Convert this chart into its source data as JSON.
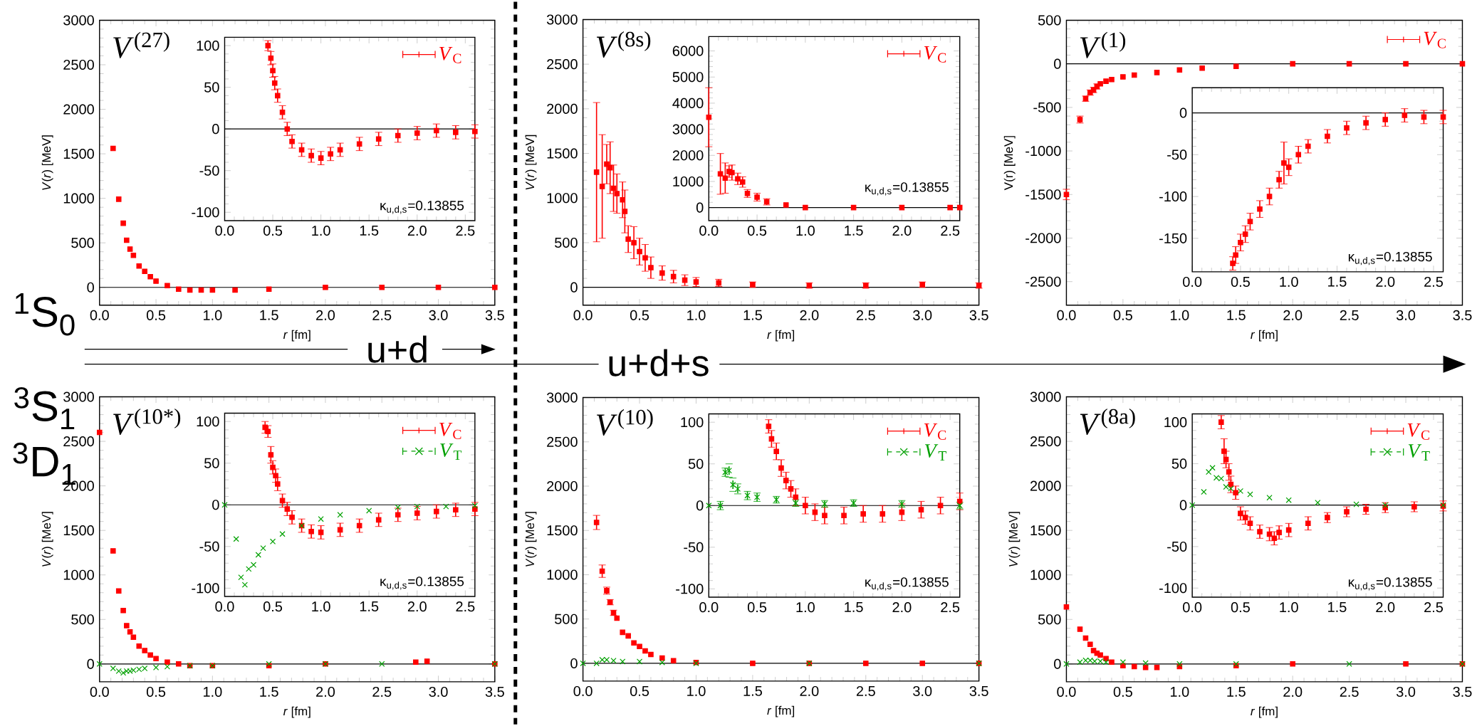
{
  "chart_data": [
    {
      "type": "scatter",
      "title": "*V*$^{(27)}$",
      "xlabel": "*r* [fm]",
      "ylabel": "*V*(*r*) [MeV]",
      "xlim": [
        0,
        3.5
      ],
      "ylim": [
        -200,
        3000
      ],
      "xticks": [
        {
          "value": 0,
          "label": "0.0"
        },
        {
          "value": 0.5,
          "label": "0.5"
        },
        {
          "value": 1,
          "label": "1.0"
        },
        {
          "value": 1.5,
          "label": "1.5"
        },
        {
          "value": 2,
          "label": "2.0"
        },
        {
          "value": 2.5,
          "label": "2.5"
        },
        {
          "value": 3,
          "label": "3.0"
        },
        {
          "value": 3.5,
          "label": "3.5"
        }
      ],
      "yticks": [
        0,
        500,
        1000,
        1500,
        2000,
        2500,
        3000
      ],
      "ref_lines": [
        {
          "axis": "y",
          "value": 0,
          "color": "#000000"
        }
      ],
      "annotations": [
        "$^{1}$S$_{0}$",
        "u+d"
      ],
      "series": [
        {
          "color": "#ff0000",
          "marker": "square",
          "x": [
            0.12,
            0.17,
            0.21,
            0.24,
            0.27,
            0.3,
            0.35,
            0.4,
            0.45,
            0.5,
            0.6,
            0.7,
            0.8,
            0.9,
            1.0,
            1.2,
            1.5,
            2.0,
            2.5,
            3.0,
            3.5
          ],
          "values": [
            1560,
            990,
            720,
            530,
            430,
            360,
            240,
            180,
            120,
            70,
            20,
            -20,
            -30,
            -30,
            -30,
            -30,
            -20,
            0,
            0,
            0,
            0
          ]
        }
      ]
    },
    {
      "type": "scatter",
      "xlim": [
        0,
        2.6
      ],
      "ylim": [
        -110,
        110
      ],
      "legend": "top right",
      "xticks": [
        {
          "value": 0,
          "label": "0.0"
        },
        {
          "value": 0.5,
          "label": "0.5"
        },
        {
          "value": 1,
          "label": "1.0"
        },
        {
          "value": 1.5,
          "label": "1.5"
        },
        {
          "value": 2,
          "label": "2.0"
        },
        {
          "value": 2.5,
          "label": "2.5"
        }
      ],
      "yticks": [
        -100,
        -50,
        0,
        50,
        100
      ],
      "ref_lines": [
        {
          "axis": "y",
          "value": 0,
          "color": "#000000"
        }
      ],
      "annotations": [
        "κ$_{u,d,s}$=0.13855"
      ],
      "series": [
        {
          "name": "*V*$_{C}$",
          "color": "#ff0000",
          "marker": "square",
          "x": [
            0.45,
            0.48,
            0.5,
            0.52,
            0.55,
            0.6,
            0.65,
            0.7,
            0.8,
            0.9,
            1.0,
            1.1,
            1.2,
            1.4,
            1.6,
            1.8,
            2.0,
            2.2,
            2.4,
            2.6
          ],
          "values": [
            100,
            85,
            70,
            55,
            40,
            20,
            0,
            -15,
            -25,
            -32,
            -35,
            -30,
            -25,
            -18,
            -12,
            -8,
            -5,
            -2,
            -4,
            -3
          ],
          "errors": [
            6,
            8,
            8,
            8,
            8,
            8,
            8,
            8,
            8,
            8,
            8,
            8,
            8,
            8,
            8,
            8,
            8,
            8,
            8,
            8
          ]
        }
      ]
    },
    {
      "type": "scatter",
      "title": "*V*$^{(8s)}$",
      "xlabel": "*r* [fm]",
      "ylabel": "*V*(*r*) [MeV]",
      "xlim": [
        0,
        3.5
      ],
      "ylim": [
        -200,
        3000
      ],
      "xticks": [
        {
          "value": 0,
          "label": "0.0"
        },
        {
          "value": 0.5,
          "label": "0.5"
        },
        {
          "value": 1,
          "label": "1.0"
        },
        {
          "value": 1.5,
          "label": "1.5"
        },
        {
          "value": 2,
          "label": "2.0"
        },
        {
          "value": 2.5,
          "label": "2.5"
        },
        {
          "value": 3,
          "label": "3.0"
        },
        {
          "value": 3.5,
          "label": "3.5"
        }
      ],
      "yticks": [
        0,
        500,
        1000,
        1500,
        2000,
        2500,
        3000
      ],
      "ref_lines": [
        {
          "axis": "y",
          "value": 0,
          "color": "#000000"
        }
      ],
      "annotations": [
        "u+d+s"
      ],
      "series": [
        {
          "color": "#ff0000",
          "marker": "square",
          "x": [
            0.12,
            0.17,
            0.21,
            0.24,
            0.27,
            0.3,
            0.35,
            0.37,
            0.4,
            0.45,
            0.5,
            0.55,
            0.6,
            0.7,
            0.8,
            0.9,
            1.0,
            1.2,
            1.5,
            2.0,
            2.5,
            3.0,
            3.5
          ],
          "values": [
            1290,
            1130,
            1380,
            1340,
            1110,
            1050,
            980,
            850,
            540,
            500,
            400,
            330,
            220,
            160,
            120,
            80,
            60,
            50,
            30,
            20,
            20,
            30,
            20
          ],
          "errors": [
            780,
            580,
            220,
            290,
            260,
            220,
            200,
            240,
            150,
            180,
            150,
            150,
            120,
            80,
            70,
            60,
            50,
            40,
            30,
            30,
            30,
            30,
            30
          ]
        }
      ]
    },
    {
      "type": "scatter",
      "xlim": [
        0,
        2.6
      ],
      "ylim": [
        -500,
        6550
      ],
      "legend": "top right",
      "xticks": [
        {
          "value": 0,
          "label": "0.0"
        },
        {
          "value": 0.5,
          "label": "0.5"
        },
        {
          "value": 1,
          "label": "1.0"
        },
        {
          "value": 1.5,
          "label": "1.5"
        },
        {
          "value": 2,
          "label": "2.0"
        },
        {
          "value": 2.5,
          "label": "2.5"
        }
      ],
      "yticks": [
        0,
        1000,
        2000,
        3000,
        4000,
        5000,
        6000
      ],
      "ref_lines": [
        {
          "axis": "y",
          "value": 0,
          "color": "#000000"
        }
      ],
      "annotations": [
        "κ$_{u,d,s}$=0.13855"
      ],
      "series": [
        {
          "name": "*V*$_{C}$",
          "color": "#ff0000",
          "marker": "square",
          "x": [
            0,
            0.12,
            0.17,
            0.21,
            0.24,
            0.3,
            0.35,
            0.4,
            0.5,
            0.6,
            0.8,
            1.0,
            1.5,
            2.0,
            2.5,
            2.6
          ],
          "values": [
            3460,
            1290,
            1130,
            1380,
            1340,
            1100,
            980,
            540,
            400,
            220,
            100,
            0,
            0,
            0,
            0,
            0
          ],
          "errors": [
            1130,
            780,
            580,
            220,
            290,
            220,
            200,
            150,
            150,
            120,
            null,
            null,
            null,
            null,
            null,
            null
          ]
        }
      ]
    },
    {
      "type": "scatter",
      "title": "*V*$^{(1)}$",
      "xlabel": "*r* [fm]",
      "ylabel": "V(r) [MeV]",
      "xlim": [
        0,
        3.5
      ],
      "ylim": [
        -2770,
        500
      ],
      "legend": "top right",
      "xticks": [
        {
          "value": 0,
          "label": "0.0"
        },
        {
          "value": 0.5,
          "label": "0.5"
        },
        {
          "value": 1,
          "label": "1.0"
        },
        {
          "value": 1.5,
          "label": "1.5"
        },
        {
          "value": 2,
          "label": "2.0"
        },
        {
          "value": 2.5,
          "label": "2.5"
        },
        {
          "value": 3,
          "label": "3.0"
        },
        {
          "value": 3.5,
          "label": "3.5"
        }
      ],
      "yticks": [
        -2500,
        -2000,
        -1500,
        -1000,
        -500,
        0,
        500
      ],
      "ref_lines": [
        {
          "axis": "y",
          "value": 0,
          "color": "#000000"
        }
      ],
      "series": [
        {
          "name": "*V*$_{C}$",
          "color": "#ff0000",
          "marker": "square",
          "x": [
            0,
            0.12,
            0.17,
            0.21,
            0.24,
            0.27,
            0.3,
            0.35,
            0.4,
            0.5,
            0.6,
            0.8,
            1.0,
            1.2,
            1.5,
            2.0,
            2.5,
            3.0,
            3.5
          ],
          "values": [
            -1500,
            -640,
            -400,
            -330,
            -300,
            -260,
            -230,
            -200,
            -180,
            -150,
            -130,
            -100,
            -70,
            -50,
            -30,
            0,
            0,
            0,
            0
          ],
          "errors": [
            60,
            40,
            30,
            30,
            30,
            30,
            null,
            null,
            null,
            null,
            null,
            null,
            null,
            null,
            null,
            null,
            null,
            null,
            null
          ]
        }
      ]
    },
    {
      "type": "scatter",
      "xlim": [
        0,
        2.6
      ],
      "ylim": [
        -190,
        30
      ],
      "xticks": [
        {
          "value": 0,
          "label": "0.0"
        },
        {
          "value": 0.5,
          "label": "0.5"
        },
        {
          "value": 1,
          "label": "1.0"
        },
        {
          "value": 1.5,
          "label": "1.5"
        },
        {
          "value": 2,
          "label": "2.0"
        },
        {
          "value": 2.5,
          "label": "2.5"
        }
      ],
      "yticks": [
        -150,
        -100,
        -50,
        0
      ],
      "ref_lines": [
        {
          "axis": "y",
          "value": 0,
          "color": "#000000"
        }
      ],
      "annotations": [
        "κ$_{u,d,s}$=0.13855"
      ],
      "series": [
        {
          "color": "#ff0000",
          "marker": "square",
          "x": [
            0.42,
            0.45,
            0.5,
            0.55,
            0.6,
            0.7,
            0.8,
            0.9,
            0.95,
            1.0,
            1.1,
            1.2,
            1.4,
            1.6,
            1.8,
            2.0,
            2.2,
            2.4,
            2.6
          ],
          "values": [
            -180,
            -170,
            -155,
            -145,
            -130,
            -115,
            -100,
            -80,
            -60,
            -65,
            -50,
            -40,
            -28,
            -18,
            -12,
            -8,
            -3,
            -5,
            -5
          ],
          "errors": [
            8,
            10,
            10,
            10,
            10,
            10,
            10,
            10,
            25,
            10,
            10,
            8,
            8,
            8,
            8,
            8,
            8,
            8,
            8
          ]
        }
      ]
    },
    {
      "type": "scatter",
      "title": "*V*$^{(10*)}$",
      "xlabel": "*r* [fm]",
      "ylabel": "*V*(*r*) [MeV]",
      "xlim": [
        0,
        3.5
      ],
      "ylim": [
        -200,
        3000
      ],
      "xticks": [
        {
          "value": 0,
          "label": "0.0"
        },
        {
          "value": 0.5,
          "label": "0.5"
        },
        {
          "value": 1,
          "label": "1.0"
        },
        {
          "value": 1.5,
          "label": "1.5"
        },
        {
          "value": 2,
          "label": "2.0"
        },
        {
          "value": 2.5,
          "label": "2.5"
        },
        {
          "value": 3,
          "label": "3.0"
        },
        {
          "value": 3.5,
          "label": "3.5"
        }
      ],
      "yticks": [
        0,
        500,
        1000,
        1500,
        2000,
        2500,
        3000
      ],
      "ref_lines": [
        {
          "axis": "y",
          "value": 0,
          "color": "#000000"
        }
      ],
      "annotations": [
        "$^{3}$S$_{1}$",
        "$^{3}$D$_{1}$"
      ],
      "series": [
        {
          "color": "#ff0000",
          "marker": "square",
          "x": [
            0,
            0.12,
            0.17,
            0.21,
            0.24,
            0.27,
            0.3,
            0.35,
            0.4,
            0.45,
            0.5,
            0.6,
            0.7,
            0.8,
            1.0,
            1.5,
            2.0,
            2.8,
            2.9,
            3.5
          ],
          "values": [
            2600,
            1270,
            820,
            600,
            430,
            360,
            300,
            200,
            150,
            100,
            60,
            20,
            0,
            -20,
            -20,
            -20,
            0,
            20,
            30,
            0
          ]
        },
        {
          "color": "#00a000",
          "marker": "cross",
          "x": [
            0,
            0.12,
            0.17,
            0.21,
            0.24,
            0.27,
            0.3,
            0.35,
            0.4,
            0.5,
            0.6,
            0.8,
            1.0,
            1.5,
            2.0,
            2.5,
            3.5
          ],
          "values": [
            0,
            -50,
            -80,
            -100,
            -80,
            -80,
            -70,
            -60,
            -50,
            -40,
            -30,
            -20,
            -20,
            0,
            0,
            0,
            0
          ]
        }
      ]
    },
    {
      "type": "scatter",
      "xlim": [
        0,
        2.6
      ],
      "ylim": [
        -110,
        110
      ],
      "legend": "top right",
      "xticks": [
        {
          "value": 0,
          "label": "0.0"
        },
        {
          "value": 0.5,
          "label": "0.5"
        },
        {
          "value": 1,
          "label": "1.0"
        },
        {
          "value": 1.5,
          "label": "1.5"
        },
        {
          "value": 2,
          "label": "2.0"
        },
        {
          "value": 2.5,
          "label": "2.5"
        }
      ],
      "yticks": [
        -100,
        -50,
        0,
        50,
        100
      ],
      "ref_lines": [
        {
          "axis": "y",
          "value": 0,
          "color": "#000000"
        }
      ],
      "annotations": [
        "κ$_{u,d,s}$=0.13855"
      ],
      "series": [
        {
          "name": "*V*$_{C}$",
          "color": "#ff0000",
          "marker": "square",
          "x": [
            0.42,
            0.45,
            0.48,
            0.5,
            0.53,
            0.55,
            0.6,
            0.65,
            0.7,
            0.8,
            0.9,
            1.0,
            1.2,
            1.4,
            1.6,
            1.8,
            2.0,
            2.2,
            2.4,
            2.6
          ],
          "values": [
            93,
            88,
            60,
            45,
            35,
            25,
            5,
            -5,
            -15,
            -25,
            -32,
            -33,
            -30,
            -25,
            -18,
            -12,
            -10,
            -8,
            -6,
            -5
          ],
          "errors": [
            7,
            7,
            10,
            8,
            8,
            8,
            8,
            8,
            8,
            8,
            8,
            8,
            8,
            8,
            8,
            8,
            8,
            8,
            8,
            8
          ]
        },
        {
          "name": "*V*$_{T}$",
          "color": "#00a000",
          "marker": "cross",
          "line_style": "dashed",
          "x": [
            0,
            0.12,
            0.17,
            0.21,
            0.25,
            0.3,
            0.35,
            0.4,
            0.5,
            0.6,
            0.8,
            1.0,
            1.2,
            1.5,
            1.8,
            2.0,
            2.3,
            2.6
          ],
          "values": [
            0,
            -41,
            -87,
            -96,
            -77,
            -72,
            -60,
            -52,
            -44,
            -35,
            -25,
            -17,
            -12,
            -7,
            -3,
            -2,
            -2,
            -1
          ]
        }
      ]
    },
    {
      "type": "scatter",
      "title": "*V*$^{(10)}$",
      "xlabel": "*r* [fm]",
      "ylabel": "*V*(*r*) [MeV]",
      "xlim": [
        0,
        3.5
      ],
      "ylim": [
        -200,
        3000
      ],
      "xticks": [
        {
          "value": 0,
          "label": "0.0"
        },
        {
          "value": 0.5,
          "label": "0.5"
        },
        {
          "value": 1,
          "label": "1.0"
        },
        {
          "value": 1.5,
          "label": "1.5"
        },
        {
          "value": 2,
          "label": "2.0"
        },
        {
          "value": 2.5,
          "label": "2.5"
        },
        {
          "value": 3,
          "label": "3.0"
        },
        {
          "value": 3.5,
          "label": "3.5"
        }
      ],
      "yticks": [
        0,
        500,
        1000,
        1500,
        2000,
        2500,
        3000
      ],
      "ref_lines": [
        {
          "axis": "y",
          "value": 0,
          "color": "#000000"
        }
      ],
      "series": [
        {
          "color": "#ff0000",
          "marker": "square",
          "x": [
            0.12,
            0.17,
            0.21,
            0.24,
            0.27,
            0.3,
            0.35,
            0.4,
            0.45,
            0.5,
            0.55,
            0.6,
            0.7,
            0.8,
            1.0,
            1.5,
            2.0,
            2.5,
            3.0,
            3.5
          ],
          "values": [
            1590,
            1040,
            820,
            690,
            570,
            510,
            350,
            310,
            230,
            190,
            140,
            100,
            60,
            30,
            10,
            0,
            0,
            0,
            0,
            0
          ],
          "errors": [
            80,
            70,
            40,
            30,
            30,
            null,
            null,
            null,
            null,
            null,
            null,
            null,
            null,
            null,
            null,
            null,
            null,
            null,
            null,
            null
          ]
        },
        {
          "color": "#00a000",
          "marker": "cross",
          "x": [
            0,
            0.12,
            0.17,
            0.21,
            0.27,
            0.35,
            0.5,
            0.7,
            1.0,
            2.0,
            3.5
          ],
          "values": [
            0,
            0,
            40,
            40,
            30,
            20,
            20,
            10,
            0,
            0,
            0
          ]
        }
      ]
    },
    {
      "type": "scatter",
      "xlim": [
        0,
        2.6
      ],
      "ylim": [
        -110,
        110
      ],
      "legend": "top right",
      "xticks": [
        {
          "value": 0,
          "label": "0.0"
        },
        {
          "value": 0.5,
          "label": "0.5"
        },
        {
          "value": 1,
          "label": "1.0"
        },
        {
          "value": 1.5,
          "label": "1.5"
        },
        {
          "value": 2,
          "label": "2.0"
        },
        {
          "value": 2.5,
          "label": "2.5"
        }
      ],
      "yticks": [
        -100,
        -50,
        0,
        50,
        100
      ],
      "ref_lines": [
        {
          "axis": "y",
          "value": 0,
          "color": "#000000"
        }
      ],
      "annotations": [
        "κ$_{u,d,s}$=0.13855"
      ],
      "series": [
        {
          "name": "*V*$_{C}$",
          "color": "#ff0000",
          "marker": "square",
          "x": [
            0.62,
            0.65,
            0.7,
            0.75,
            0.8,
            0.85,
            0.9,
            1.0,
            1.1,
            1.2,
            1.4,
            1.6,
            1.8,
            2.0,
            2.2,
            2.4,
            2.6
          ],
          "values": [
            95,
            80,
            65,
            45,
            30,
            20,
            10,
            0,
            -8,
            -12,
            -12,
            -10,
            -10,
            -8,
            -5,
            0,
            5
          ],
          "errors": [
            8,
            10,
            10,
            10,
            10,
            10,
            10,
            10,
            10,
            10,
            10,
            10,
            10,
            10,
            10,
            10,
            10
          ]
        },
        {
          "name": "*V*$_{T}$",
          "color": "#00a000",
          "marker": "cross",
          "line_style": "dashed",
          "x": [
            0,
            0.12,
            0.17,
            0.21,
            0.25,
            0.3,
            0.4,
            0.5,
            0.7,
            0.9,
            1.2,
            1.5,
            2.0,
            2.6
          ],
          "values": [
            0,
            0,
            40,
            42,
            25,
            20,
            12,
            10,
            7,
            3,
            2,
            3,
            2,
            0
          ],
          "errors": [
            null,
            5,
            5,
            8,
            8,
            6,
            5,
            5,
            4,
            4,
            4,
            4,
            4,
            4
          ]
        }
      ]
    },
    {
      "type": "scatter",
      "title": "*V*$^{(8a)}$",
      "xlabel": "*r* [fm]",
      "ylabel": "*V*(*r*) [MeV]",
      "xlim": [
        0,
        3.5
      ],
      "ylim": [
        -200,
        3000
      ],
      "xticks": [
        {
          "value": 0,
          "label": "0.0"
        },
        {
          "value": 0.5,
          "label": "0.5"
        },
        {
          "value": 1,
          "label": "1.0"
        },
        {
          "value": 1.5,
          "label": "1.5"
        },
        {
          "value": 2,
          "label": "2.0"
        },
        {
          "value": 2.5,
          "label": "2.5"
        },
        {
          "value": 3,
          "label": "3.0"
        },
        {
          "value": 3.5,
          "label": "3.5"
        }
      ],
      "yticks": [
        0,
        500,
        1000,
        1500,
        2000,
        2500,
        3000
      ],
      "ref_lines": [
        {
          "axis": "y",
          "value": 0,
          "color": "#000000"
        }
      ],
      "series": [
        {
          "color": "#ff0000",
          "marker": "square",
          "x": [
            0,
            0.12,
            0.17,
            0.21,
            0.24,
            0.27,
            0.3,
            0.35,
            0.4,
            0.5,
            0.6,
            0.7,
            0.8,
            1.0,
            1.5,
            2.0,
            3.0,
            3.5
          ],
          "values": [
            640,
            390,
            290,
            220,
            150,
            120,
            100,
            60,
            20,
            -20,
            -30,
            -40,
            -40,
            -30,
            -20,
            0,
            0,
            0
          ]
        },
        {
          "color": "#00a000",
          "marker": "cross",
          "x": [
            0,
            0.12,
            0.17,
            0.21,
            0.25,
            0.3,
            0.35,
            0.5,
            0.7,
            1.0,
            1.5,
            2.5,
            3.5
          ],
          "values": [
            0,
            20,
            40,
            40,
            30,
            30,
            20,
            20,
            10,
            0,
            0,
            0,
            0
          ]
        }
      ]
    },
    {
      "type": "scatter",
      "xlim": [
        0,
        2.6
      ],
      "ylim": [
        -111,
        110
      ],
      "legend": "top right",
      "xticks": [
        {
          "value": 0,
          "label": "0.0"
        },
        {
          "value": 0.5,
          "label": "0.5"
        },
        {
          "value": 1,
          "label": "1.0"
        },
        {
          "value": 1.5,
          "label": "1.5"
        },
        {
          "value": 2,
          "label": "2.0"
        },
        {
          "value": 2.5,
          "label": "2.5"
        }
      ],
      "yticks": [
        -100,
        -50,
        0,
        50,
        100
      ],
      "ref_lines": [
        {
          "axis": "y",
          "value": 0,
          "color": "#000000"
        }
      ],
      "annotations": [
        "κ$_{u,d,s}$=0.13855"
      ],
      "series": [
        {
          "name": "*V*$_{C}$",
          "color": "#ff0000",
          "marker": "square",
          "x": [
            0.3,
            0.33,
            0.35,
            0.38,
            0.4,
            0.45,
            0.5,
            0.55,
            0.6,
            0.7,
            0.8,
            0.85,
            0.9,
            1.0,
            1.2,
            1.4,
            1.6,
            1.8,
            2.0,
            2.3,
            2.6
          ],
          "values": [
            100,
            65,
            55,
            40,
            25,
            15,
            -10,
            -15,
            -22,
            -32,
            -35,
            -40,
            -33,
            -30,
            -22,
            -15,
            -8,
            -5,
            -3,
            -2,
            -1
          ],
          "errors": [
            8,
            15,
            10,
            10,
            10,
            8,
            8,
            8,
            8,
            8,
            8,
            8,
            8,
            8,
            8,
            6,
            6,
            6,
            6,
            6,
            6
          ]
        },
        {
          "name": "*V*$_{T}$",
          "color": "#00a000",
          "marker": "cross",
          "line_style": "dashed",
          "x": [
            0,
            0.12,
            0.17,
            0.21,
            0.25,
            0.3,
            0.35,
            0.4,
            0.5,
            0.6,
            0.8,
            1.0,
            1.3,
            1.7,
            2.0,
            2.6
          ],
          "values": [
            0,
            16,
            40,
            45,
            33,
            32,
            22,
            20,
            17,
            13,
            9,
            6,
            3,
            1,
            0,
            0
          ]
        }
      ]
    }
  ]
}
